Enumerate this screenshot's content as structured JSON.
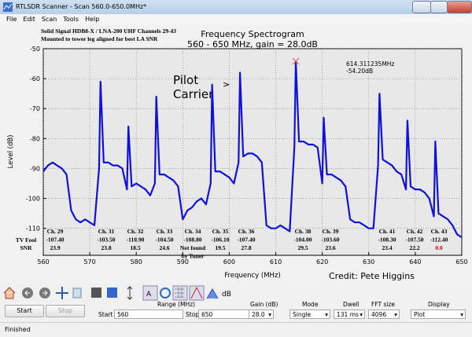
{
  "window": {
    "title": "RTLSDR Scanner - Scan 560.0-650.0MHz*",
    "menu": [
      "File",
      "Edit",
      "Scan",
      "Tools",
      "Help"
    ]
  },
  "chart_data": {
    "type": "line",
    "title": "Frequency Spectrogram",
    "subtitle": "560 - 650 MHz, gain = 28.0dB",
    "xlabel": "Frequency (MHz)",
    "ylabel": "Level (dB)",
    "notes": [
      "Solid Signal HDB8-X / LNA-200 UHF Channels 29-43",
      "Mounted to tower leg aligned for best LA SNR"
    ],
    "pilot_note": [
      "Pilot",
      "Carrier",
      ">"
    ],
    "credit": "Credit: Pete Higgins",
    "xlim": [
      560,
      650
    ],
    "xticks": [
      560,
      570,
      580,
      590,
      600,
      610,
      620,
      630,
      640,
      650
    ],
    "ylim": [
      -119,
      -50
    ],
    "yticks": [
      -110,
      -100,
      -90,
      -80,
      -70,
      -60,
      -50
    ],
    "grid": true,
    "x": [
      560,
      561,
      562,
      563,
      564,
      565,
      566,
      567,
      568,
      569,
      570,
      571,
      572,
      572.31,
      573,
      574,
      575,
      576,
      577,
      578,
      578.31,
      579,
      580,
      581,
      582,
      583,
      584,
      584.31,
      585,
      586,
      587,
      588,
      589,
      590,
      591,
      592,
      593,
      594,
      595,
      596,
      596.31,
      597,
      598,
      599,
      600,
      601,
      602,
      602.31,
      603,
      604,
      605,
      606,
      607,
      608,
      609,
      610,
      611,
      612,
      613,
      614,
      614.31,
      615,
      616,
      617,
      618,
      619,
      620,
      620.31,
      621,
      622,
      623,
      624,
      625,
      626,
      627,
      628,
      629,
      630,
      631,
      632,
      632.31,
      633,
      634,
      635,
      636,
      637,
      638,
      638.31,
      639,
      640,
      641,
      642,
      643,
      644,
      644.31,
      645,
      646,
      647,
      648,
      649,
      650
    ],
    "series": [
      {
        "color": "#1010d8",
        "values": [
          -91,
          -89,
          -88,
          -89,
          -90,
          -92,
          -104,
          -107,
          -108,
          -107,
          -108,
          -109,
          -90,
          -61,
          -88,
          -88,
          -89,
          -89,
          -90,
          -97,
          -76,
          -96,
          -95,
          -96,
          -97,
          -99,
          -95,
          -66,
          -92,
          -92,
          -93,
          -94,
          -96,
          -107,
          -104,
          -103,
          -101,
          -100,
          -102,
          -95,
          -62,
          -91,
          -91,
          -92,
          -93,
          -95,
          -88,
          -58,
          -86,
          -85,
          -85,
          -86,
          -88,
          -109,
          -110,
          -110,
          -109,
          -110,
          -111,
          -83,
          -54.2,
          -81,
          -81,
          -82,
          -82,
          -83,
          -95,
          -73,
          -92,
          -92,
          -93,
          -94,
          -96,
          -107,
          -108,
          -108,
          -109,
          -110,
          -110,
          -89,
          -65,
          -87,
          -88,
          -89,
          -91,
          -92,
          -97,
          -74,
          -96,
          -97,
          -97,
          -98,
          -100,
          -106,
          -81,
          -105,
          -106,
          -107,
          -109,
          -112,
          -113
        ]
      }
    ],
    "marker": {
      "x": 614.311235,
      "y": -54.2,
      "color": "#e06060",
      "labels": [
        "614.311235MHz",
        "-54.20dB"
      ]
    },
    "row_labels": [
      "TV Fool",
      "SNR"
    ],
    "channels": [
      {
        "lines": [
          "Ch. 29",
          "-107.40",
          "23.9"
        ]
      },
      {
        "lines": [
          "Ch. 31",
          "-103.50",
          "23.8"
        ]
      },
      {
        "lines": [
          "Ch. 32",
          "-110.90",
          "18.5"
        ]
      },
      {
        "lines": [
          "Ch. 33",
          "-104.50",
          "24.6"
        ]
      },
      {
        "lines": [
          "Ch. 34",
          "-108.80",
          "Not found",
          "by Tuner"
        ]
      },
      {
        "lines": [
          "Ch. 35",
          "-106.10",
          "19.5"
        ]
      },
      {
        "lines": [
          "Ch. 36",
          "-107.40",
          "27.8"
        ]
      },
      {
        "lines": [
          "Ch. 38",
          "-104.00",
          "29.5"
        ]
      },
      {
        "lines": [
          "Ch. 39",
          "-103.60",
          "23.6"
        ]
      },
      {
        "lines": [
          "Ch. 41",
          "-108.30",
          "23.4"
        ]
      },
      {
        "lines": [
          "Ch. 42",
          "-107.50",
          "22.2"
        ]
      },
      {
        "lines": [
          "Ch. 43",
          "-112.40",
          "0.0"
        ],
        "snr_color": "#d00000"
      }
    ]
  },
  "toolbar": {
    "unit": "dB"
  },
  "controls": {
    "start_button": "Start",
    "stop_button": "Stop",
    "range_label": "Range (MHz)",
    "start_label": "Start",
    "start_value": "560",
    "stop_label": "Stop",
    "stop_value": "650",
    "gain_label": "Gain (dB)",
    "gain_value": "28.0",
    "mode_label": "Mode",
    "mode_value": "Single",
    "dwell_label": "Dwell",
    "dwell_value": "131 ms",
    "fft_label": "FFT size",
    "fft_value": "4096",
    "display_label": "Display",
    "display_value": "Plot"
  },
  "status": "Finished"
}
